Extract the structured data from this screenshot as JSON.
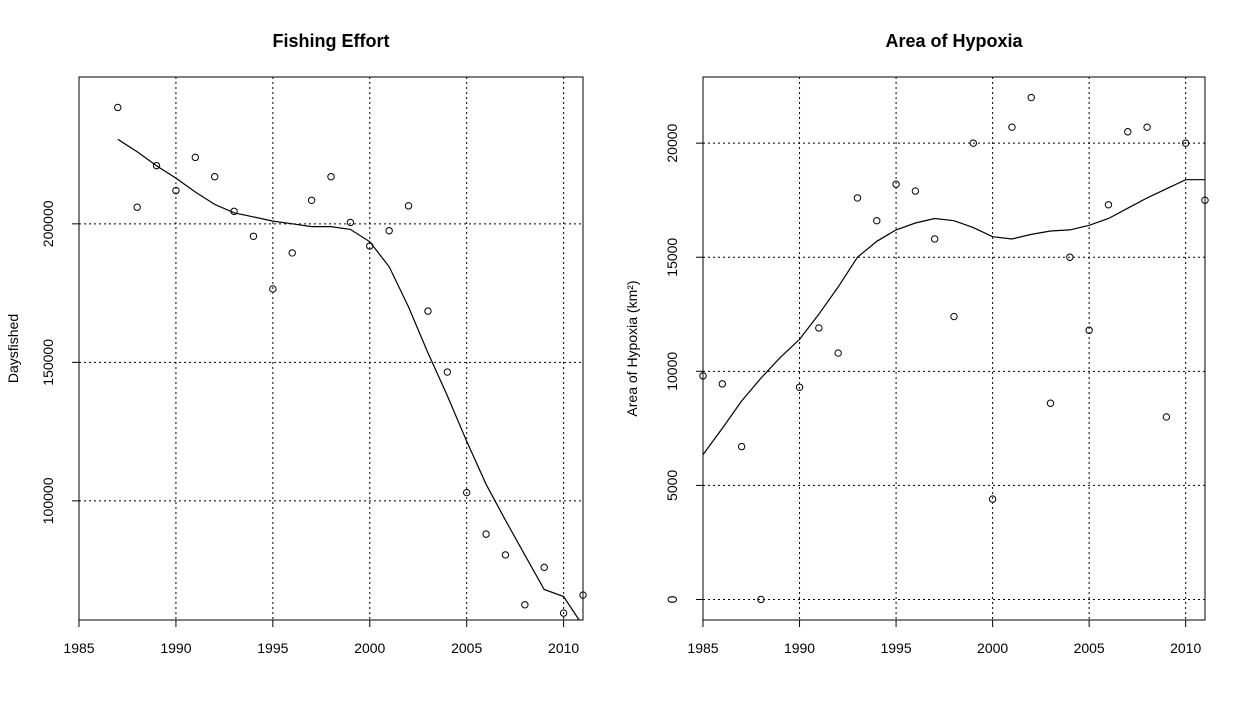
{
  "chart_data": [
    {
      "type": "scatter",
      "title": "Fishing Effort",
      "xlabel": "",
      "ylabel": "Daysfished",
      "xlim": [
        1985,
        2011
      ],
      "ylim": [
        57000,
        253000
      ],
      "x_ticks": [
        1985,
        1990,
        1995,
        2000,
        2005,
        2010
      ],
      "y_ticks": [
        100000,
        150000,
        200000
      ],
      "grid": true,
      "series": [
        {
          "kind": "points",
          "x": [
            1987,
            1988,
            1989,
            1990,
            1991,
            1992,
            1993,
            1994,
            1995,
            1996,
            1997,
            1998,
            1999,
            2000,
            2001,
            2002,
            2003,
            2004,
            2005,
            2006,
            2007,
            2008,
            2009,
            2010,
            2011
          ],
          "y": [
            242000,
            206000,
            221000,
            212000,
            224000,
            217000,
            204500,
            195500,
            176500,
            189500,
            208500,
            217000,
            200500,
            192000,
            197500,
            206500,
            168500,
            146500,
            103000,
            88000,
            80500,
            62500,
            76000,
            59500,
            66000
          ]
        },
        {
          "kind": "line",
          "x": [
            1987,
            1988,
            1989,
            1990,
            1991,
            1992,
            1993,
            1994,
            1995,
            1996,
            1997,
            1998,
            1999,
            2000,
            2001,
            2002,
            2003,
            2004,
            2005,
            2006,
            2007,
            2008,
            2009,
            2010,
            2010.8
          ],
          "y": [
            230500,
            226000,
            221000,
            216500,
            211500,
            207000,
            204000,
            202500,
            201000,
            200000,
            199000,
            199000,
            198000,
            193500,
            184500,
            170000,
            153500,
            138000,
            121500,
            106000,
            93000,
            80500,
            68000,
            65500,
            57000
          ]
        }
      ]
    },
    {
      "type": "scatter",
      "title": "Area of Hypoxia",
      "xlabel": "",
      "ylabel": "Area of Hypoxia (km²)",
      "xlim": [
        1985,
        2011
      ],
      "ylim": [
        -900,
        22900
      ],
      "x_ticks": [
        1985,
        1990,
        1995,
        2000,
        2005,
        2010
      ],
      "y_ticks": [
        0,
        5000,
        10000,
        15000,
        20000
      ],
      "grid": true,
      "series": [
        {
          "kind": "points",
          "x": [
            1985,
            1986,
            1987,
            1988,
            1990,
            1991,
            1992,
            1993,
            1994,
            1995,
            1996,
            1997,
            1998,
            1999,
            2000,
            2001,
            2002,
            2003,
            2004,
            2005,
            2006,
            2007,
            2008,
            2009,
            2010,
            2011
          ],
          "y": [
            9800,
            9450,
            6700,
            0,
            9300,
            11900,
            10800,
            17600,
            16600,
            18200,
            17900,
            15800,
            12400,
            20000,
            4400,
            20700,
            22000,
            8600,
            15000,
            11800,
            17300,
            20500,
            20700,
            8000,
            20000,
            17500
          ]
        },
        {
          "kind": "line",
          "x": [
            1985,
            1986,
            1987,
            1988,
            1989,
            1990,
            1991,
            1992,
            1993,
            1994,
            1995,
            1996,
            1997,
            1998,
            1999,
            2000,
            2001,
            2002,
            2003,
            2004,
            2005,
            2006,
            2007,
            2008,
            2009,
            2010,
            2011
          ],
          "y": [
            6350,
            7500,
            8700,
            9700,
            10600,
            11400,
            12500,
            13700,
            15000,
            15700,
            16200,
            16500,
            16700,
            16600,
            16300,
            15900,
            15800,
            16000,
            16150,
            16200,
            16400,
            16700,
            17150,
            17600,
            18000,
            18400,
            18400
          ]
        }
      ]
    }
  ]
}
